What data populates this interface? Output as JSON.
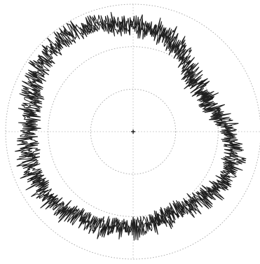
{
  "chart_data": {
    "type": "line",
    "coordinate_system": "polar",
    "title": "",
    "xlabel": "",
    "ylabel": "",
    "grid": true,
    "grid_rings": [
      1,
      2,
      3
    ],
    "r_range": [
      0,
      3
    ],
    "center_marker": true,
    "colors": {
      "series": "#1f1f1f",
      "grid": "#a8a8a8",
      "background": "#ffffff"
    },
    "series": [
      {
        "theta_deg": [
          0,
          10,
          20,
          30,
          40,
          50,
          60,
          70,
          80,
          90,
          100,
          110,
          120,
          130,
          140,
          150,
          160,
          170,
          180,
          190,
          200,
          210,
          220,
          230,
          240,
          250,
          260,
          270,
          280,
          290,
          300,
          310,
          320,
          330,
          340,
          350,
          360
        ],
        "r_mean": [
          2.5,
          2.45,
          2.4,
          2.25,
          2.0,
          1.85,
          1.85,
          1.9,
          2.05,
          2.25,
          2.4,
          2.45,
          2.4,
          2.3,
          2.2,
          2.15,
          2.15,
          2.2,
          2.25,
          2.3,
          2.35,
          2.4,
          2.45,
          2.5,
          2.55,
          2.55,
          2.5,
          2.45,
          2.45,
          2.5,
          2.6,
          2.7,
          2.75,
          2.75,
          2.65,
          2.55,
          2.5
        ],
        "r_noise": 0.2
      },
      {
        "theta_deg": [
          0,
          10,
          20,
          30,
          40,
          50,
          60,
          70,
          80,
          90,
          100,
          110,
          120,
          130,
          140,
          150,
          160,
          170,
          180,
          190,
          200,
          210,
          220,
          230,
          240,
          250,
          260,
          270,
          280,
          290,
          300,
          310,
          320,
          330,
          340,
          350,
          360
        ],
        "r_mean": [
          2.45,
          2.4,
          2.3,
          2.15,
          1.95,
          1.8,
          1.8,
          1.85,
          2.0,
          2.2,
          2.35,
          2.4,
          2.35,
          2.25,
          2.15,
          2.1,
          2.1,
          2.15,
          2.2,
          2.25,
          2.3,
          2.35,
          2.4,
          2.45,
          2.5,
          2.5,
          2.45,
          2.4,
          2.4,
          2.45,
          2.55,
          2.65,
          2.7,
          2.7,
          2.6,
          2.5,
          2.45
        ],
        "r_noise": 0.18
      },
      {
        "theta_deg": [
          0,
          10,
          20,
          30,
          40,
          50,
          60,
          70,
          80,
          90,
          100,
          110,
          120,
          130,
          140,
          150,
          160,
          170,
          180,
          190,
          200,
          210,
          220,
          230,
          240,
          250,
          260,
          270,
          280,
          290,
          300,
          310,
          320,
          330,
          340,
          350,
          360
        ],
        "r_mean": [
          2.55,
          2.5,
          2.45,
          2.3,
          2.05,
          1.9,
          1.9,
          1.95,
          2.1,
          2.3,
          2.45,
          2.5,
          2.45,
          2.35,
          2.25,
          2.2,
          2.2,
          2.25,
          2.3,
          2.35,
          2.4,
          2.45,
          2.5,
          2.55,
          2.6,
          2.6,
          2.55,
          2.5,
          2.5,
          2.55,
          2.65,
          2.75,
          2.8,
          2.8,
          2.7,
          2.6,
          2.55
        ],
        "r_noise": 0.22
      }
    ]
  }
}
